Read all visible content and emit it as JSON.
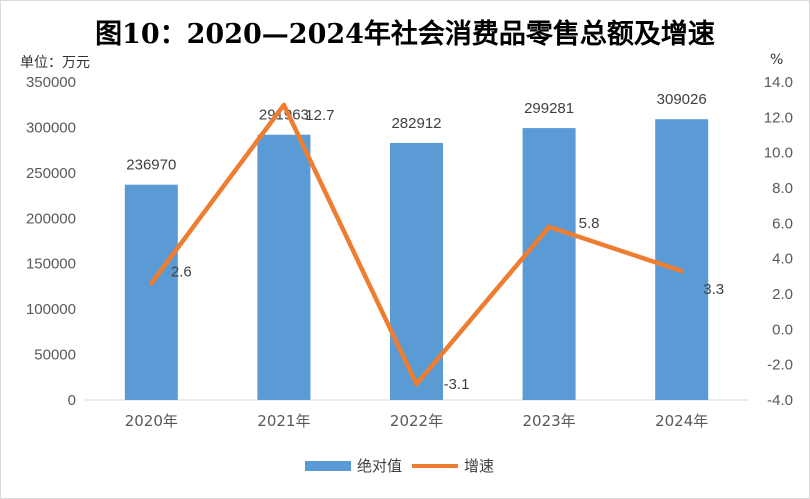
{
  "chart_data": {
    "type": "bar+line",
    "title": "图10：2020—2024年社会消费品零售总额及增速",
    "categories": [
      "2020年",
      "2021年",
      "2022年",
      "2023年",
      "2024年"
    ],
    "series": [
      {
        "name": "绝对值",
        "type": "bar",
        "axis": "left",
        "values": [
          236970,
          291963,
          282912,
          299281,
          309026
        ],
        "color": "#5b9bd5"
      },
      {
        "name": "增速",
        "type": "line",
        "axis": "right",
        "values": [
          2.6,
          12.7,
          -3.1,
          5.8,
          3.3
        ],
        "color": "#ed7d31"
      }
    ],
    "y_left": {
      "unit": "单位：万元",
      "range": [
        0,
        350000
      ],
      "ticks": [
        "0",
        "50000",
        "100000",
        "150000",
        "200000",
        "250000",
        "300000",
        "350000"
      ]
    },
    "y_right": {
      "unit": "%",
      "range": [
        -4.0,
        14.0
      ],
      "ticks": [
        "-4.0",
        "-2.0",
        "0.0",
        "2.0",
        "4.0",
        "6.0",
        "8.0",
        "10.0",
        "12.0",
        "14.0"
      ]
    },
    "bar_labels": [
      "236970",
      "291963",
      "282912",
      "299281",
      "309026"
    ],
    "line_labels": [
      "2.6",
      "12.7",
      "-3.1",
      "5.8",
      "3.3"
    ],
    "grid": false,
    "legend_position": "bottom"
  }
}
